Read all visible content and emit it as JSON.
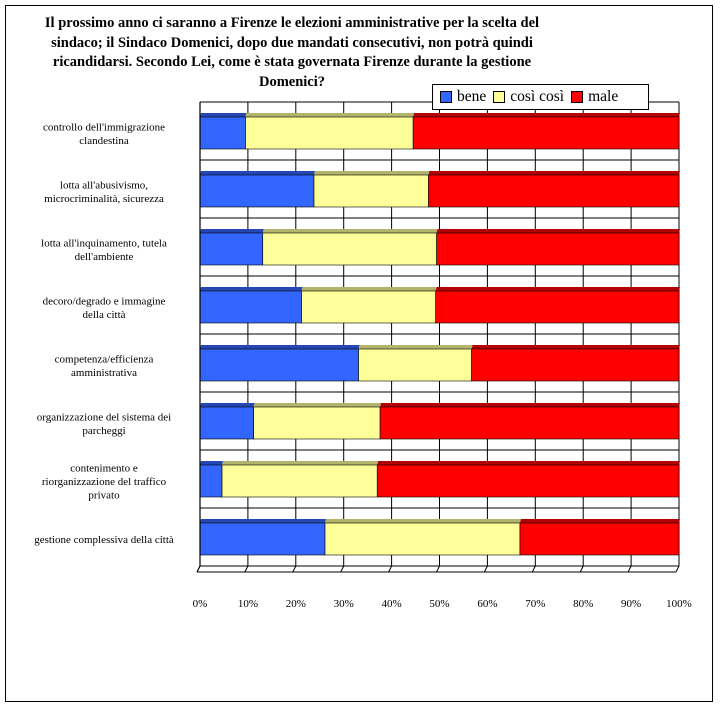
{
  "title_lines": [
    "Il prossimo anno ci saranno a Firenze le elezioni amministrative per la scelta del",
    "sindaco; il Sindaco Domenici, dopo due mandati consecutivi, non potrà quindi",
    "ricandidarsi. Secondo Lei, come è stata governata Firenze durante la gestione",
    "Domenici?"
  ],
  "colors": {
    "bene": "#3366ff",
    "cosi_cosi": "#ffff99",
    "male": "#ff0000"
  },
  "chart_data": {
    "type": "bar",
    "orientation": "horizontal",
    "stacked": "100%",
    "title": "Il prossimo anno ci saranno a Firenze le elezioni amministrative per la scelta del sindaco; il Sindaco Domenici, dopo due mandati consecutivi, non potrà quindi ricandidarsi. Secondo Lei, come è stata governata Firenze durante la gestione Domenici?",
    "categories": [
      [
        "controllo dell'immigrazione",
        "clandestina"
      ],
      [
        "lotta all'abusivismo,",
        "microcriminalità, sicurezza"
      ],
      [
        "lotta all'inquinamento, tutela",
        "dell'ambiente"
      ],
      [
        "decoro/degrado e immagine",
        "della città"
      ],
      [
        "competenza/efficienza",
        "amministrativa"
      ],
      [
        "organizzazione del sistema dei",
        "parcheggi"
      ],
      [
        "contenimento e",
        "riorganizzazione del traffico",
        "privato"
      ],
      [
        "gestione complessiva della città"
      ]
    ],
    "series": [
      {
        "name": "bene",
        "values": [
          9.5,
          23.8,
          13.1,
          21.2,
          33.1,
          11.2,
          4.6,
          26.1
        ]
      },
      {
        "name": "così così",
        "values": [
          35.0,
          23.9,
          36.3,
          28.0,
          23.6,
          26.4,
          32.4,
          40.7
        ]
      },
      {
        "name": "male",
        "values": [
          55.5,
          52.3,
          50.6,
          50.8,
          43.3,
          62.4,
          63.0,
          33.2
        ]
      }
    ],
    "xlim": [
      0,
      100
    ],
    "x_ticks": [
      "0%",
      "10%",
      "20%",
      "30%",
      "40%",
      "50%",
      "60%",
      "70%",
      "80%",
      "90%",
      "100%"
    ],
    "grid": true,
    "legend_position": "top-right",
    "legend": [
      "bene",
      "così così",
      "male"
    ]
  }
}
